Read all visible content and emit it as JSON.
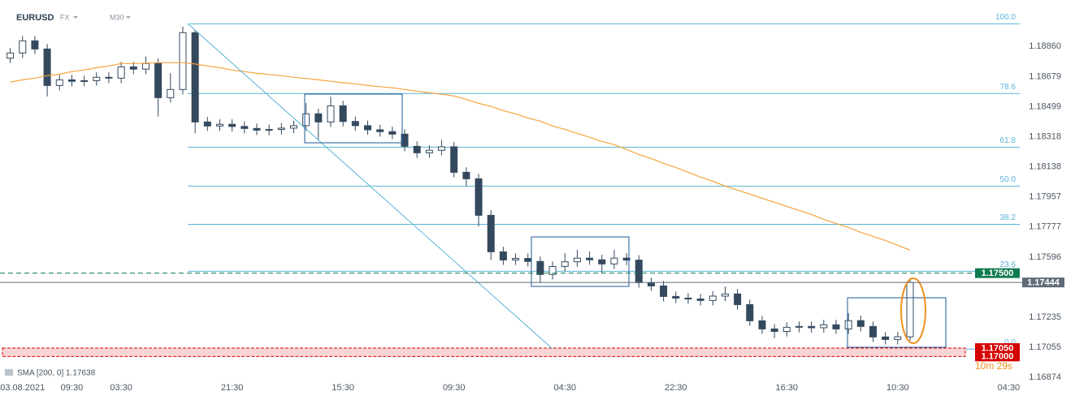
{
  "chart_data": {
    "type": "candlestick",
    "symbol": "EURUSD",
    "market": "FX",
    "timeframe": "M30",
    "categories": [
      null,
      "03.08.2021",
      null,
      null,
      null,
      "09:30",
      null,
      null,
      null,
      "03:30",
      null,
      null,
      null,
      null,
      null,
      null,
      null,
      null,
      "21:30",
      null,
      null,
      null,
      null,
      null,
      null,
      null,
      null,
      "15:30",
      null,
      null,
      null,
      null,
      null,
      null,
      null,
      null,
      "09:30",
      null,
      null,
      null,
      null,
      null,
      null,
      null,
      null,
      "04:30",
      null,
      null,
      null,
      null,
      null,
      null,
      null,
      null,
      "22:30",
      null,
      null,
      null,
      null,
      null,
      null,
      null,
      null,
      "16:30",
      null,
      null,
      null,
      null,
      null,
      null,
      null,
      null,
      "10:30",
      null,
      null,
      null,
      null,
      null,
      null,
      null,
      null,
      "04:30"
    ],
    "open": [
      1.1879,
      1.18821,
      1.18894,
      1.18845,
      1.18626,
      1.1866,
      1.18651,
      1.18655,
      1.18675,
      1.1867,
      1.18738,
      1.18724,
      1.18758,
      1.18553,
      1.18602,
      1.18943,
      1.18407,
      1.18383,
      1.18393,
      1.1838,
      1.18368,
      1.18358,
      1.18362,
      1.1837,
      1.18385,
      1.18456,
      1.18407,
      1.18504,
      1.1841,
      1.18385,
      1.1836,
      1.18349,
      1.18334,
      1.18261,
      1.18222,
      1.18237,
      1.18258,
      1.18105,
      1.18066,
      1.17847,
      1.17628,
      1.17579,
      1.17588,
      1.1757,
      1.17492,
      1.1754,
      1.17568,
      1.1759,
      1.1758,
      1.17555,
      1.1759,
      1.17578,
      1.17443,
      1.17423,
      1.1736,
      1.1735,
      1.17345,
      1.17336,
      1.17362,
      1.17375,
      1.17311,
      1.17214,
      1.17165,
      1.1715,
      1.17175,
      1.1718,
      1.17172,
      1.1719,
      1.17165,
      1.17215,
      1.1718,
      1.17117,
      1.17102,
      1.17118,
      null,
      null,
      null,
      null,
      null,
      null,
      null,
      null
    ],
    "high": [
      1.18851,
      1.18924,
      1.18924,
      1.18875,
      1.1869,
      1.1869,
      1.18685,
      1.18705,
      1.18705,
      1.18768,
      1.18768,
      1.188,
      1.18788,
      1.187,
      1.1898,
      1.1896,
      1.18437,
      1.18423,
      1.18423,
      1.1841,
      1.18398,
      1.18392,
      1.184,
      1.18415,
      1.1852,
      1.18486,
      1.1856,
      1.18534,
      1.1844,
      1.18415,
      1.1839,
      1.18379,
      1.18364,
      1.18291,
      1.18267,
      1.183,
      1.18288,
      1.18135,
      1.18096,
      1.17877,
      1.17658,
      1.17618,
      1.17618,
      1.176,
      1.1757,
      1.1762,
      1.1764,
      1.1763,
      1.1761,
      1.1764,
      1.1762,
      1.17608,
      1.17473,
      1.17453,
      1.1739,
      1.1738,
      1.17375,
      1.17392,
      1.1742,
      1.17405,
      1.17341,
      1.17244,
      1.17195,
      1.17205,
      1.1721,
      1.1721,
      1.1722,
      1.1722,
      1.1726,
      1.17245,
      1.1721,
      1.17147,
      1.17148,
      1.1747,
      null,
      null,
      null,
      null,
      null,
      null,
      null,
      null
    ],
    "low": [
      1.1876,
      1.18791,
      1.18815,
      1.1856,
      1.18596,
      1.18621,
      1.18621,
      1.18625,
      1.1864,
      1.1864,
      1.18694,
      1.18694,
      1.1844,
      1.18523,
      1.18572,
      1.1834,
      1.18353,
      1.18353,
      1.1835,
      1.18338,
      1.18328,
      1.18328,
      1.18332,
      1.1834,
      1.18355,
      1.183,
      1.18377,
      1.1838,
      1.18355,
      1.1833,
      1.18319,
      1.18304,
      1.18231,
      1.18192,
      1.18192,
      1.18207,
      1.18075,
      1.1802,
      1.1778,
      1.1758,
      1.17549,
      1.17549,
      1.1754,
      1.1744,
      1.17462,
      1.1751,
      1.17538,
      1.1755,
      1.175,
      1.17525,
      1.17548,
      1.17413,
      1.17393,
      1.1733,
      1.1732,
      1.17315,
      1.17306,
      1.17306,
      1.17332,
      1.17281,
      1.17184,
      1.17135,
      1.1711,
      1.1712,
      1.17145,
      1.17142,
      1.17142,
      1.17135,
      1.17135,
      1.1715,
      1.17087,
      1.17072,
      1.17072,
      1.17095,
      null,
      null,
      null,
      null,
      null,
      null,
      null,
      null
    ],
    "close": [
      1.18821,
      1.18894,
      1.18845,
      1.18626,
      1.1866,
      1.18651,
      1.18655,
      1.18675,
      1.1867,
      1.18738,
      1.18724,
      1.18758,
      1.18553,
      1.18602,
      1.18943,
      1.18407,
      1.18383,
      1.18393,
      1.1838,
      1.18368,
      1.18358,
      1.18362,
      1.1837,
      1.18385,
      1.18456,
      1.18407,
      1.18504,
      1.1841,
      1.18385,
      1.1836,
      1.18349,
      1.18334,
      1.18261,
      1.18222,
      1.18237,
      1.18258,
      1.18105,
      1.18066,
      1.17847,
      1.17628,
      1.17579,
      1.17588,
      1.1757,
      1.17492,
      1.1754,
      1.17568,
      1.1759,
      1.1758,
      1.17555,
      1.1759,
      1.17578,
      1.17443,
      1.17423,
      1.1736,
      1.1735,
      1.17345,
      1.17336,
      1.17362,
      1.17375,
      1.17311,
      1.17214,
      1.17165,
      1.1715,
      1.17175,
      1.1718,
      1.17172,
      1.1719,
      1.17165,
      1.17215,
      1.1718,
      1.17117,
      1.17102,
      1.17118,
      1.17444,
      null,
      null,
      null,
      null,
      null,
      null,
      null,
      null
    ],
    "up_color": "#ffffff",
    "down_color": "#34495e",
    "sma": {
      "label": "SMA [200, 0] 1.17638",
      "color": "#f4a43c",
      "values": [
        1.18646,
        1.1866,
        1.1867,
        1.18685,
        1.18694,
        1.18709,
        1.18719,
        1.18733,
        1.18743,
        1.18758,
        1.18758,
        1.1876,
        1.18763,
        1.18763,
        1.18763,
        1.18755,
        1.18743,
        1.18733,
        1.18719,
        1.18709,
        1.18699,
        1.18692,
        1.18685,
        1.18675,
        1.18668,
        1.1866,
        1.18651,
        1.18643,
        1.18636,
        1.18626,
        1.18619,
        1.18612,
        1.18602,
        1.18592,
        1.18582,
        1.18573,
        1.18563,
        1.18543,
        1.18519,
        1.185,
        1.18475,
        1.18456,
        1.18431,
        1.18412,
        1.18383,
        1.18363,
        1.18339,
        1.18315,
        1.1829,
        1.18271,
        1.18242,
        1.18212,
        1.18188,
        1.18159,
        1.18134,
        1.18105,
        1.18076,
        1.18052,
        1.18022,
        1.17998,
        1.17974,
        1.17949,
        1.17925,
        1.17901,
        1.17876,
        1.17852,
        1.17823,
        1.17798,
        1.17774,
        1.17745,
        1.1772,
        1.17696,
        1.17667,
        1.17638,
        null,
        null,
        null,
        null,
        null,
        null,
        null,
        null
      ]
    },
    "fibonacci": {
      "color": "#5ab4d6",
      "levels": [
        {
          "label": "100.0",
          "price": 1.18996
        },
        {
          "label": "78.6",
          "price": 1.18578
        },
        {
          "label": "61.8",
          "price": 1.18256
        },
        {
          "label": "50.0",
          "price": 1.18022
        },
        {
          "label": "38.2",
          "price": 1.17793
        },
        {
          "label": "23.6",
          "price": 1.17511
        },
        {
          "label": "0.0",
          "price": 1.17044
        }
      ]
    },
    "price_levels": [
      {
        "value": 1.175,
        "label": "1.17500",
        "color": "#0f7b4f",
        "line": "dashed"
      },
      {
        "value": 1.17444,
        "label": "1.17444",
        "color": "#5f6b77",
        "line": "solid"
      },
      {
        "value": 1.1705,
        "label": "1.17050",
        "color": "#d40000",
        "line": "zone"
      },
      {
        "value": 1.17,
        "label": "1.17000",
        "color": "#d40000",
        "line": "zone"
      }
    ],
    "countdown": "10m 29s",
    "ylim": [
      1.16836,
      1.19139
    ],
    "yticks": [
      {
        "value": 1.1886,
        "label": "1.18860"
      },
      1.18679,
      1.18499,
      1.18318,
      1.18138,
      1.17957,
      1.17777,
      1.17596,
      1.17235,
      1.17055,
      1.16874
    ],
    "grid": false
  }
}
